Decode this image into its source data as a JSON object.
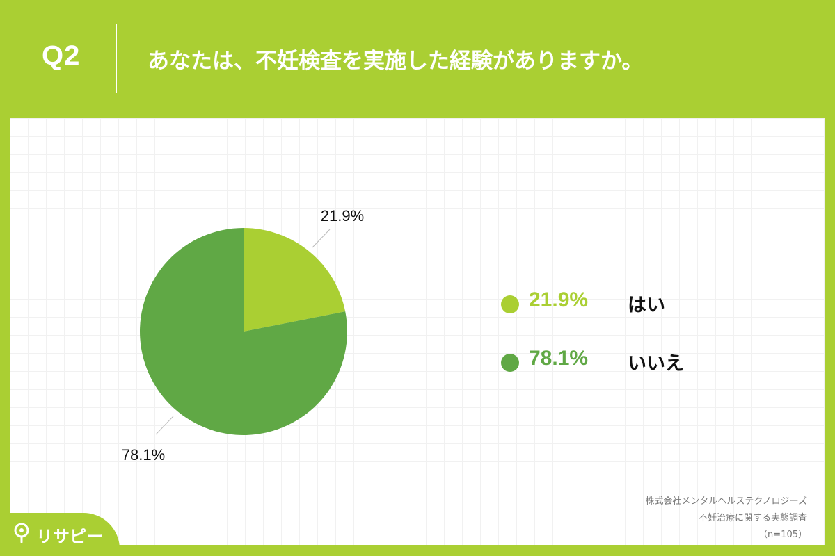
{
  "header": {
    "question_label": "Q2",
    "question_text": "あなたは、不妊検査を実施した経験がありますか。"
  },
  "chart_data": {
    "type": "pie",
    "categories": [
      "はい",
      "いいえ"
    ],
    "values": [
      21.9,
      78.1
    ],
    "data_labels": [
      "21.9%",
      "78.1%"
    ],
    "colors": [
      "#aacf33",
      "#60a845"
    ],
    "legend_placement": "right"
  },
  "legend": [
    {
      "value": "21.9%",
      "label": "はい"
    },
    {
      "value": "78.1%",
      "label": "いいえ"
    }
  ],
  "source": {
    "line1": "株式会社メンタルヘルステクノロジーズ",
    "line2": "不妊治療に関する実態調査",
    "line3": "（n=105）"
  },
  "brand": {
    "name": "リサピー",
    "icon": "pin-icon",
    "header_color": "#aacf33"
  }
}
